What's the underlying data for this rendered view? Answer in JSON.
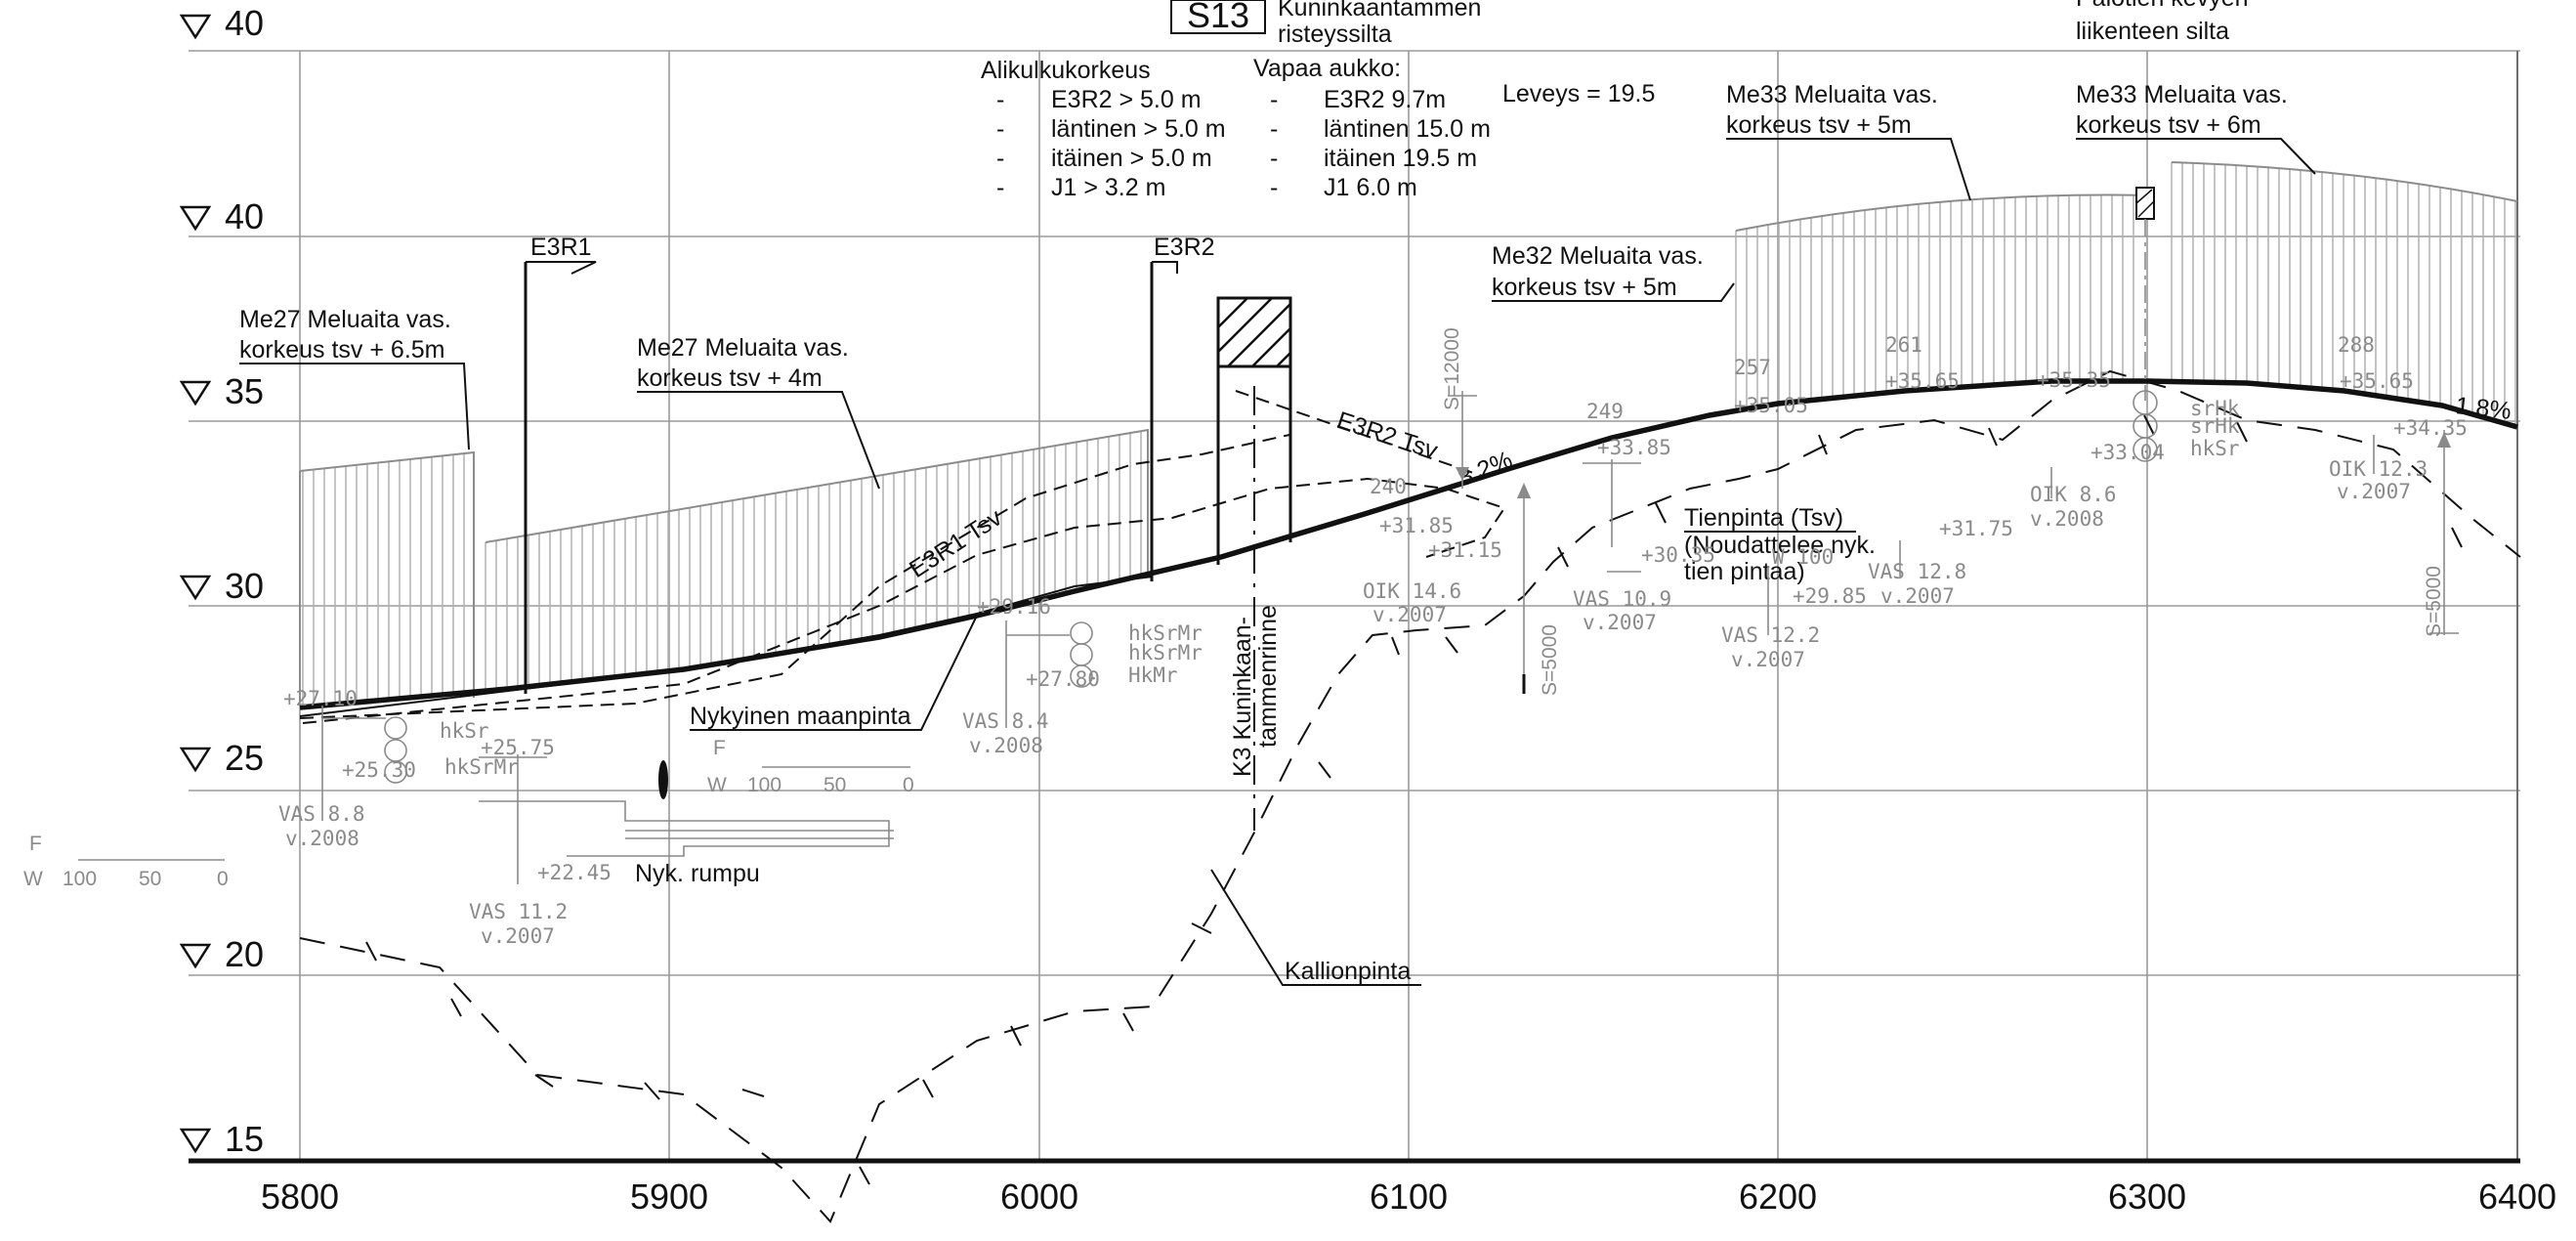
{
  "axes": {
    "x_ticks": [
      "5800",
      "5900",
      "6000",
      "6100",
      "6200",
      "6300",
      "6400"
    ],
    "y_ticks": [
      "40",
      "40",
      "35",
      "30",
      "25",
      "20",
      "15"
    ]
  },
  "bridge": {
    "id": "S13",
    "name_line1": "Kuninkaantammen",
    "name_line2": "risteyssilta"
  },
  "footbridge": {
    "line1": "Palotien kevyen",
    "line2": "liikenteen silta"
  },
  "clearance": {
    "title": "Alikulkukorkeus",
    "items": [
      "E3R2 > 5.0 m",
      "läntinen > 5.0 m",
      "itäinen > 5.0 m",
      "J1 > 3.2 m"
    ]
  },
  "opening": {
    "title": "Vapaa aukko:",
    "items": [
      "E3R2 9.7m",
      "läntinen 15.0 m",
      "itäinen 19.5 m",
      "J1 6.0 m"
    ]
  },
  "width_label": "Leveys = 19.5",
  "bullet": "-",
  "noise_barriers": [
    {
      "line1": "Me27  Meluaita vas.",
      "line2": "korkeus tsv + 6.5m"
    },
    {
      "line1": "Me27  Meluaita vas.",
      "line2": "korkeus tsv + 4m"
    },
    {
      "line1": "Me32  Meluaita vas.",
      "line2": "korkeus tsv + 5m"
    },
    {
      "line1": "Me33  Meluaita vas.",
      "line2": "korkeus tsv + 5m"
    },
    {
      "line1": "Me33 Meluaita vas.",
      "line2": "korkeus tsv + 6m"
    }
  ],
  "ramps": {
    "e3r1": "E3R1",
    "e3r2": "E3R2",
    "e3r1_tsv": "E3R1 Tsv",
    "e3r2_tsv": "E3R2 Tsv"
  },
  "grades": {
    "g1": "3.2%",
    "g2": "1.8%"
  },
  "road_surface": {
    "line1": "Tienpinta (Tsv)",
    "line2": "(Noudattelee nyk.",
    "line3": "tien pintaa)"
  },
  "labels": {
    "ground": "Nykyinen maanpinta",
    "culvert": "Nyk. rumpu",
    "bedrock": "Kallionpinta",
    "k3_line1": "K3 Kuninkaan-",
    "k3_line2": "tammenrinne"
  },
  "curves": {
    "s12000": "S=12000",
    "s5000a": "S=5000",
    "s5000b": "S=5000"
  },
  "scale_bar": {
    "f": "F",
    "w": "W",
    "t100": "100",
    "t50": "50",
    "t0": "0"
  },
  "grey_labels": {
    "station_240": "240",
    "station_249": "249",
    "station_257": "257",
    "station_261": "261",
    "station_288": "288",
    "v_2710": "+27.10",
    "v_2530": "+25.30",
    "v_2575": "+25.75",
    "v_2245": "+22.45",
    "v_2780": "+27.80",
    "v_2916": "+29.16",
    "v_3185": "+31.85",
    "v_3115": "+31.15",
    "v_3385": "+33.85",
    "v_3035": "+30.35",
    "v_3505": "+35.05",
    "v_3565a": "+35.65",
    "v_3535": "+35.35",
    "v_3004": "+33.04",
    "v_3175": "+31.75",
    "v_2985": "+29.85",
    "v_3565b": "+35.65",
    "v_3435": "+34.35",
    "vas88": "VAS 8.8",
    "y2008a": "v.2008",
    "vas112": "VAS 11.2",
    "y2007a": "v.2007",
    "vas84": "VAS 8.4",
    "y2008b": "v.2008",
    "olk146": "OIK 14.6",
    "y2007b": "v.2007",
    "vas109": "VAS 10.9",
    "y2007c": "v.2007",
    "vas122": "VAS 12.2",
    "y2007d": "v.2007",
    "vas128": "VAS 12.8",
    "y2007e": "v.2007",
    "olk86": "OIK 8.6",
    "y2008c": "v.2008",
    "olk123": "OIK 12.3",
    "y2007f": "v.2007",
    "hk1": "hkSr",
    "hk2": "hkSrMr",
    "hk3": "hkSrMr",
    "hk4": "hkSrMr",
    "hk5": "HkMr",
    "hk6": "srHk",
    "hk7": "srHk",
    "hk8": "hkSr",
    "w100": "W 100"
  }
}
